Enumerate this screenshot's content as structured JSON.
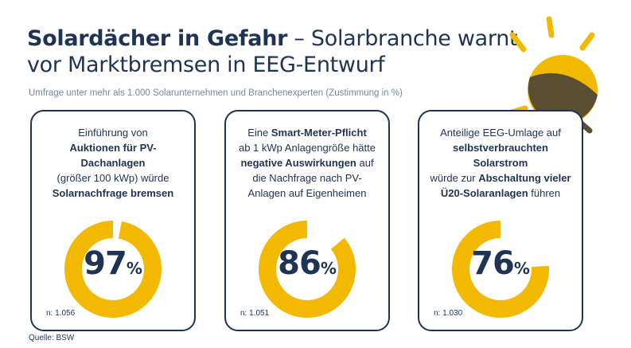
{
  "header": {
    "title_bold": "Solardächer in Gefahr",
    "title_rest_line1": " – Solarbranche warnt",
    "title_line2": "vor Marktbremsen in EEG-Entwurf",
    "subtitle": "Umfrage unter mehr als 1.000 Solarunternehmen und Branchenexperten (Zustimmung in %)"
  },
  "colors": {
    "navy": "#1f3354",
    "accent_yellow": "#f3b800",
    "sun_shadow": "#5a4f33",
    "subtitle_blue": "#6f88a6"
  },
  "icons": [
    "sun-icon"
  ],
  "cards": [
    {
      "text_segments": [
        {
          "text": "Einführung von",
          "bold": false
        },
        {
          "text": "Auktionen für PV-Dachanlagen",
          "bold": true
        },
        {
          "text": "(größer 100 kWp) würde",
          "bold": false
        },
        {
          "text": "Solarnachfrage bremsen",
          "bold": true
        }
      ],
      "sample_size": "n: 1.056"
    },
    {
      "text_segments": [
        {
          "text": "Eine ",
          "bold": false
        },
        {
          "text": "Smart-Meter-Pflicht",
          "bold": true
        },
        {
          "text": "ab 1 kWp Anlagengröße hätte",
          "bold": false
        },
        {
          "text": "negative Auswirkungen",
          "bold": true
        },
        {
          "text": " auf die Nachfrage nach PV-Anlagen auf Eigenheimen",
          "bold": false
        }
      ],
      "sample_size": "n: 1.051"
    },
    {
      "text_segments": [
        {
          "text": "Anteilige EEG-Umlage auf",
          "bold": false
        },
        {
          "text": "selbstverbrauchten Solarstrom",
          "bold": true
        },
        {
          "text": "würde zur ",
          "bold": false
        },
        {
          "text": "Abschaltung vieler Ü20-Solaranlagen",
          "bold": true
        },
        {
          "text": " führen",
          "bold": false
        }
      ],
      "sample_size": "n: 1.030"
    }
  ],
  "chart_data": [
    {
      "type": "pie",
      "values": [
        97,
        3
      ],
      "display_value": "97",
      "unit": "%"
    },
    {
      "type": "pie",
      "values": [
        86,
        14
      ],
      "display_value": "86",
      "unit": "%"
    },
    {
      "type": "pie",
      "values": [
        76,
        24
      ],
      "display_value": "76",
      "unit": "%"
    }
  ],
  "footer": {
    "source": "Quelle: BSW"
  }
}
